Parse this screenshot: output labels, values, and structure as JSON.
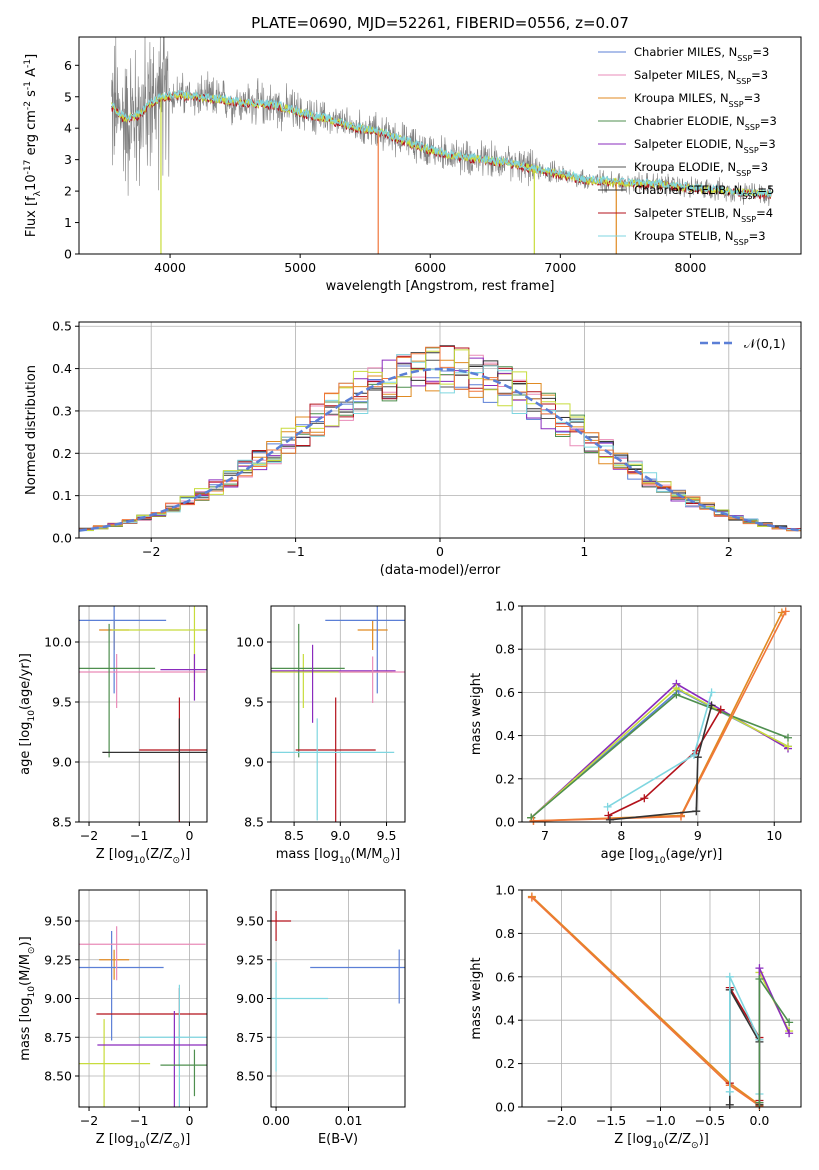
{
  "colors": {
    "blue": "#5b7fd6",
    "pink": "#e98bb8",
    "orange": "#e08a22",
    "green": "#4f8f4f",
    "purple": "#8a2bbd",
    "gray": "#555555",
    "dark": "#333333",
    "red": "#b3121b",
    "cyan": "#7fd6e0",
    "yellow": "#c8dc3c",
    "orange2": "#f0763a",
    "data": "#808080"
  },
  "chart_data": [
    {
      "id": "spectrum",
      "type": "line",
      "title": "PLATE=0690, MJD=52261, FIBERID=0556, z=0.07",
      "xlabel": "wavelength [Angstrom, rest frame]",
      "ylabel": "Flux [f$_\\lambda$10$^{-17}$ erg cm$^{-2}$ s$^{-1}$ A$^{-1}$]",
      "xlim": [
        3300,
        8850
      ],
      "ylim": [
        0,
        6.9
      ],
      "xticks": [
        "4000",
        "5000",
        "6000",
        "7000",
        "8000"
      ],
      "yticks": [
        "0",
        "1",
        "2",
        "3",
        "4",
        "5",
        "6"
      ],
      "legend": [
        {
          "label": "Chabrier MILES, N$_{SSP}$=3",
          "color": "blue"
        },
        {
          "label": "Salpeter MILES, N$_{SSP}$=3",
          "color": "pink"
        },
        {
          "label": "Kroupa MILES, N$_{SSP}$=3",
          "color": "orange"
        },
        {
          "label": "Chabrier ELODIE, N$_{SSP}$=3",
          "color": "green"
        },
        {
          "label": "Salpeter ELODIE, N$_{SSP}$=3",
          "color": "purple"
        },
        {
          "label": "Kroupa ELODIE, N$_{SSP}$=3",
          "color": "gray"
        },
        {
          "label": "Chabrier STELIB, N$_{SSP}$=5",
          "color": "dark"
        },
        {
          "label": "Salpeter STELIB, N$_{SSP}$=4",
          "color": "red"
        },
        {
          "label": "Kroupa STELIB, N$_{SSP}$=3",
          "color": "cyan"
        }
      ],
      "legend_position": "upper right",
      "model_continuum": [
        [
          3550,
          4.7
        ],
        [
          3650,
          4.3
        ],
        [
          3750,
          4.4
        ],
        [
          3850,
          4.8
        ],
        [
          3950,
          5.0
        ],
        [
          4050,
          5.05
        ],
        [
          4200,
          5.0
        ],
        [
          4400,
          4.9
        ],
        [
          4600,
          4.8
        ],
        [
          4800,
          4.75
        ],
        [
          5000,
          4.5
        ],
        [
          5200,
          4.3
        ],
        [
          5400,
          4.05
        ],
        [
          5600,
          3.9
        ],
        [
          5800,
          3.6
        ],
        [
          6000,
          3.3
        ],
        [
          6200,
          3.1
        ],
        [
          6400,
          3.0
        ],
        [
          6600,
          2.9
        ],
        [
          6800,
          2.7
        ],
        [
          7000,
          2.55
        ],
        [
          7200,
          2.35
        ],
        [
          7400,
          2.3
        ],
        [
          7600,
          2.25
        ],
        [
          7800,
          2.2
        ],
        [
          8000,
          2.1
        ],
        [
          8200,
          2.05
        ],
        [
          8400,
          1.95
        ],
        [
          8600,
          1.9
        ]
      ]
    },
    {
      "id": "residuals",
      "type": "line",
      "xlabel": "(data-model)/error",
      "ylabel": "Normed distribution",
      "xlim": [
        -2.5,
        2.5
      ],
      "ylim": [
        0,
        0.51
      ],
      "xticks": [
        "−2",
        "−1",
        "0",
        "1",
        "2"
      ],
      "yticks": [
        "0.0",
        "0.1",
        "0.2",
        "0.3",
        "0.4",
        "0.5"
      ],
      "legend": [
        {
          "label": "$\\mathcal{N}(0,1)$",
          "color": "blue",
          "style": "dashed"
        }
      ],
      "legend_position": "upper right",
      "bin_width": 0.1
    },
    {
      "id": "age-vs-Z",
      "type": "scatter",
      "xlabel": "Z [log$_{10}$($Z/Z_\\odot$)]",
      "ylabel": "age  [log$_{10}$($age/yr$)]",
      "xlim": [
        -2.2,
        0.35
      ],
      "ylim": [
        8.5,
        10.3
      ],
      "xticks": [
        "−2",
        "−1",
        "0"
      ],
      "yticks": [
        "8.5",
        "9.0",
        "9.5",
        "10.0"
      ],
      "points": [
        {
          "x": -1.5,
          "y": 10.1,
          "color": "orange"
        },
        {
          "x": -1.5,
          "y": 10.18,
          "color": "blue"
        },
        {
          "x": -1.45,
          "y": 9.75,
          "color": "pink"
        },
        {
          "x": -1.6,
          "y": 9.78,
          "color": "green"
        },
        {
          "x": 0.1,
          "y": 10.1,
          "color": "yellow"
        },
        {
          "x": -0.2,
          "y": 9.1,
          "color": "red"
        },
        {
          "x": -0.2,
          "y": 9.08,
          "color": "dark"
        },
        {
          "x": 0.1,
          "y": 9.77,
          "color": "purple"
        }
      ]
    },
    {
      "id": "age-vs-mass",
      "type": "scatter",
      "xlabel": "mass [log$_{10}$($M/M_\\odot$)]",
      "ylabel": "",
      "xlim": [
        8.25,
        9.7
      ],
      "ylim": [
        8.5,
        10.3
      ],
      "xticks": [
        "8.5",
        "9.0",
        "9.5"
      ],
      "yticks": [
        "8.5",
        "9.0",
        "9.5",
        "10.0"
      ],
      "points": [
        {
          "x": 9.35,
          "y": 10.1,
          "color": "orange"
        },
        {
          "x": 9.4,
          "y": 10.18,
          "color": "blue"
        },
        {
          "x": 8.6,
          "y": 9.75,
          "color": "yellow"
        },
        {
          "x": 8.55,
          "y": 9.78,
          "color": "green"
        },
        {
          "x": 8.7,
          "y": 9.76,
          "color": "purple"
        },
        {
          "x": 8.95,
          "y": 9.1,
          "color": "red"
        },
        {
          "x": 8.75,
          "y": 9.08,
          "color": "cyan"
        },
        {
          "x": 9.35,
          "y": 9.75,
          "color": "pink"
        }
      ]
    },
    {
      "id": "weight-vs-age",
      "type": "line",
      "xlabel": "age  [log$_{10}$($age/yr$)]",
      "ylabel": "mass weight",
      "xlim": [
        6.7,
        10.35
      ],
      "ylim": [
        0,
        1.0
      ],
      "xticks": [
        "7",
        "8",
        "9",
        "10"
      ],
      "yticks": [
        "0.0",
        "0.2",
        "0.4",
        "0.6",
        "0.8",
        "1.0"
      ],
      "series": [
        {
          "color": "blue",
          "x": [
            6.82,
            8.75,
            10.18
          ],
          "y": [
            0.02,
            0.61,
            0.35
          ]
        },
        {
          "color": "purple",
          "x": [
            6.82,
            8.72,
            10.18
          ],
          "y": [
            0.02,
            0.64,
            0.34
          ]
        },
        {
          "color": "yellow",
          "x": [
            6.82,
            8.72,
            10.18
          ],
          "y": [
            0.02,
            0.62,
            0.35
          ]
        },
        {
          "color": "green",
          "x": [
            6.82,
            8.72,
            10.18
          ],
          "y": [
            0.02,
            0.59,
            0.39
          ]
        },
        {
          "color": "orange",
          "x": [
            6.85,
            8.78,
            10.1
          ],
          "y": [
            0.005,
            0.03,
            0.97
          ]
        },
        {
          "color": "orange2",
          "x": [
            6.85,
            8.78,
            10.15
          ],
          "y": [
            0.005,
            0.025,
            0.975
          ]
        },
        {
          "color": "red",
          "x": [
            7.83,
            8.3,
            8.98,
            9.3
          ],
          "y": [
            0.03,
            0.11,
            0.33,
            0.52
          ]
        },
        {
          "color": "dark",
          "x": [
            7.85,
            8.98,
            9.0,
            9.18
          ],
          "y": [
            0.01,
            0.05,
            0.3,
            0.54
          ]
        },
        {
          "color": "cyan",
          "x": [
            7.82,
            8.95,
            9.18
          ],
          "y": [
            0.07,
            0.31,
            0.6
          ]
        }
      ]
    },
    {
      "id": "mass-vs-Z",
      "type": "scatter",
      "xlabel": "Z [log$_{10}$($Z/Z_\\odot$)]",
      "ylabel": "mass [log$_{10}$($M/M_\\odot$)]",
      "xlim": [
        -2.2,
        0.35
      ],
      "ylim": [
        8.3,
        9.7
      ],
      "xticks": [
        "−2",
        "−1",
        "0"
      ],
      "yticks": [
        "8.50",
        "8.75",
        "9.00",
        "9.25",
        "9.50"
      ],
      "points": [
        {
          "x": -1.5,
          "y": 9.25,
          "color": "orange"
        },
        {
          "x": -1.55,
          "y": 9.2,
          "color": "blue"
        },
        {
          "x": -1.45,
          "y": 9.35,
          "color": "pink"
        },
        {
          "x": -1.7,
          "y": 8.58,
          "color": "yellow"
        },
        {
          "x": -0.2,
          "y": 8.9,
          "color": "red"
        },
        {
          "x": -0.2,
          "y": 8.75,
          "color": "cyan"
        },
        {
          "x": -0.3,
          "y": 8.7,
          "color": "purple"
        },
        {
          "x": 0.1,
          "y": 8.57,
          "color": "green"
        }
      ]
    },
    {
      "id": "mass-vs-ebv",
      "type": "scatter",
      "xlabel": "E(B-V)",
      "ylabel": "",
      "xlim": [
        -0.0007,
        0.0178
      ],
      "ylim": [
        8.3,
        9.7
      ],
      "xticks": [
        "0.00",
        "0.01"
      ],
      "yticks": [
        "8.50",
        "8.75",
        "9.00",
        "9.25",
        "9.50"
      ],
      "points": [
        {
          "x": 0.0,
          "y": 9.5,
          "color": "red"
        },
        {
          "x": 0.0,
          "y": 9.0,
          "color": "cyan"
        },
        {
          "x": 0.017,
          "y": 9.2,
          "color": "blue"
        }
      ]
    },
    {
      "id": "weight-vs-Z",
      "type": "line",
      "xlabel": "Z [log$_{10}$($Z/Z_\\odot$)]",
      "ylabel": "mass weight",
      "xlim": [
        -2.4,
        0.42
      ],
      "ylim": [
        0,
        1.0
      ],
      "xticks": [
        "−2.0",
        "−1.5",
        "−1.0",
        "−0.5",
        "0.0"
      ],
      "yticks": [
        "0.0",
        "0.2",
        "0.4",
        "0.6",
        "0.8",
        "1.0"
      ],
      "series": [
        {
          "color": "orange",
          "x": [
            -2.3,
            -0.3,
            0.0
          ],
          "y": [
            0.97,
            0.11,
            0.01
          ]
        },
        {
          "color": "orange2",
          "x": [
            -2.3,
            -0.3,
            0.0
          ],
          "y": [
            0.965,
            0.1,
            0.005
          ]
        },
        {
          "color": "red",
          "x": [
            -0.3,
            -0.3,
            -0.0,
            0.0
          ],
          "y": [
            0.11,
            0.55,
            0.32,
            0.03
          ]
        },
        {
          "color": "dark",
          "x": [
            -0.3,
            -0.3,
            -0.0,
            0.0
          ],
          "y": [
            0.01,
            0.54,
            0.3,
            0.01
          ]
        },
        {
          "color": "cyan",
          "x": [
            -0.3,
            -0.3,
            0.0,
            0.0
          ],
          "y": [
            0.07,
            0.6,
            0.31,
            0.06
          ]
        },
        {
          "color": "yellow",
          "x": [
            0.0,
            0.0,
            0.3
          ],
          "y": [
            0.02,
            0.62,
            0.35
          ]
        },
        {
          "color": "purple",
          "x": [
            0.0,
            0.0,
            0.3
          ],
          "y": [
            0.02,
            0.64,
            0.34
          ]
        },
        {
          "color": "green",
          "x": [
            0.0,
            0.0,
            0.3
          ],
          "y": [
            0.02,
            0.59,
            0.39
          ]
        }
      ]
    }
  ]
}
